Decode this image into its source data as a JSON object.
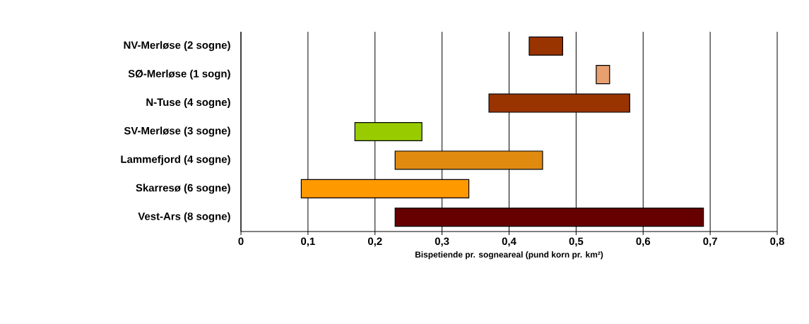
{
  "chart_data": {
    "type": "bar",
    "orientation": "horizontal",
    "xlabel": "Bispetiende pr. sogneareal (pund korn pr. km²)",
    "categories": [
      "NV-Merløse (2 sogne)",
      "SØ-Merløse (1 sogn)",
      "N-Tuse (4 sogne)",
      "SV-Merløse (3 sogne)",
      "Lammefjord (4 sogne)",
      "Skarresø (6 sogne)",
      "Vest-Ars (8 sogne)"
    ],
    "base": [
      0.43,
      0.53,
      0.37,
      0.17,
      0.23,
      0.09,
      0.23
    ],
    "values": [
      0.05,
      0.02,
      0.21,
      0.1,
      0.22,
      0.25,
      0.46
    ],
    "colors": [
      "#993300",
      "#e8a070",
      "#993300",
      "#99cc00",
      "#e08a10",
      "#ff9900",
      "#660000"
    ],
    "xlim": [
      0,
      0.8
    ],
    "xticks": [
      0,
      {
        "value": 0.1,
        "label": "0,1"
      },
      {
        "value": 0.2,
        "label": "0,2"
      },
      {
        "value": 0.3,
        "label": "0,3"
      },
      {
        "value": 0.4,
        "label": "0,4"
      },
      {
        "value": 0.5,
        "label": "0,5"
      },
      {
        "value": 0.6,
        "label": "0,6"
      },
      {
        "value": 0.7,
        "label": "0,7"
      },
      {
        "value": 0.8,
        "label": "0,8"
      }
    ],
    "grid": "x"
  }
}
